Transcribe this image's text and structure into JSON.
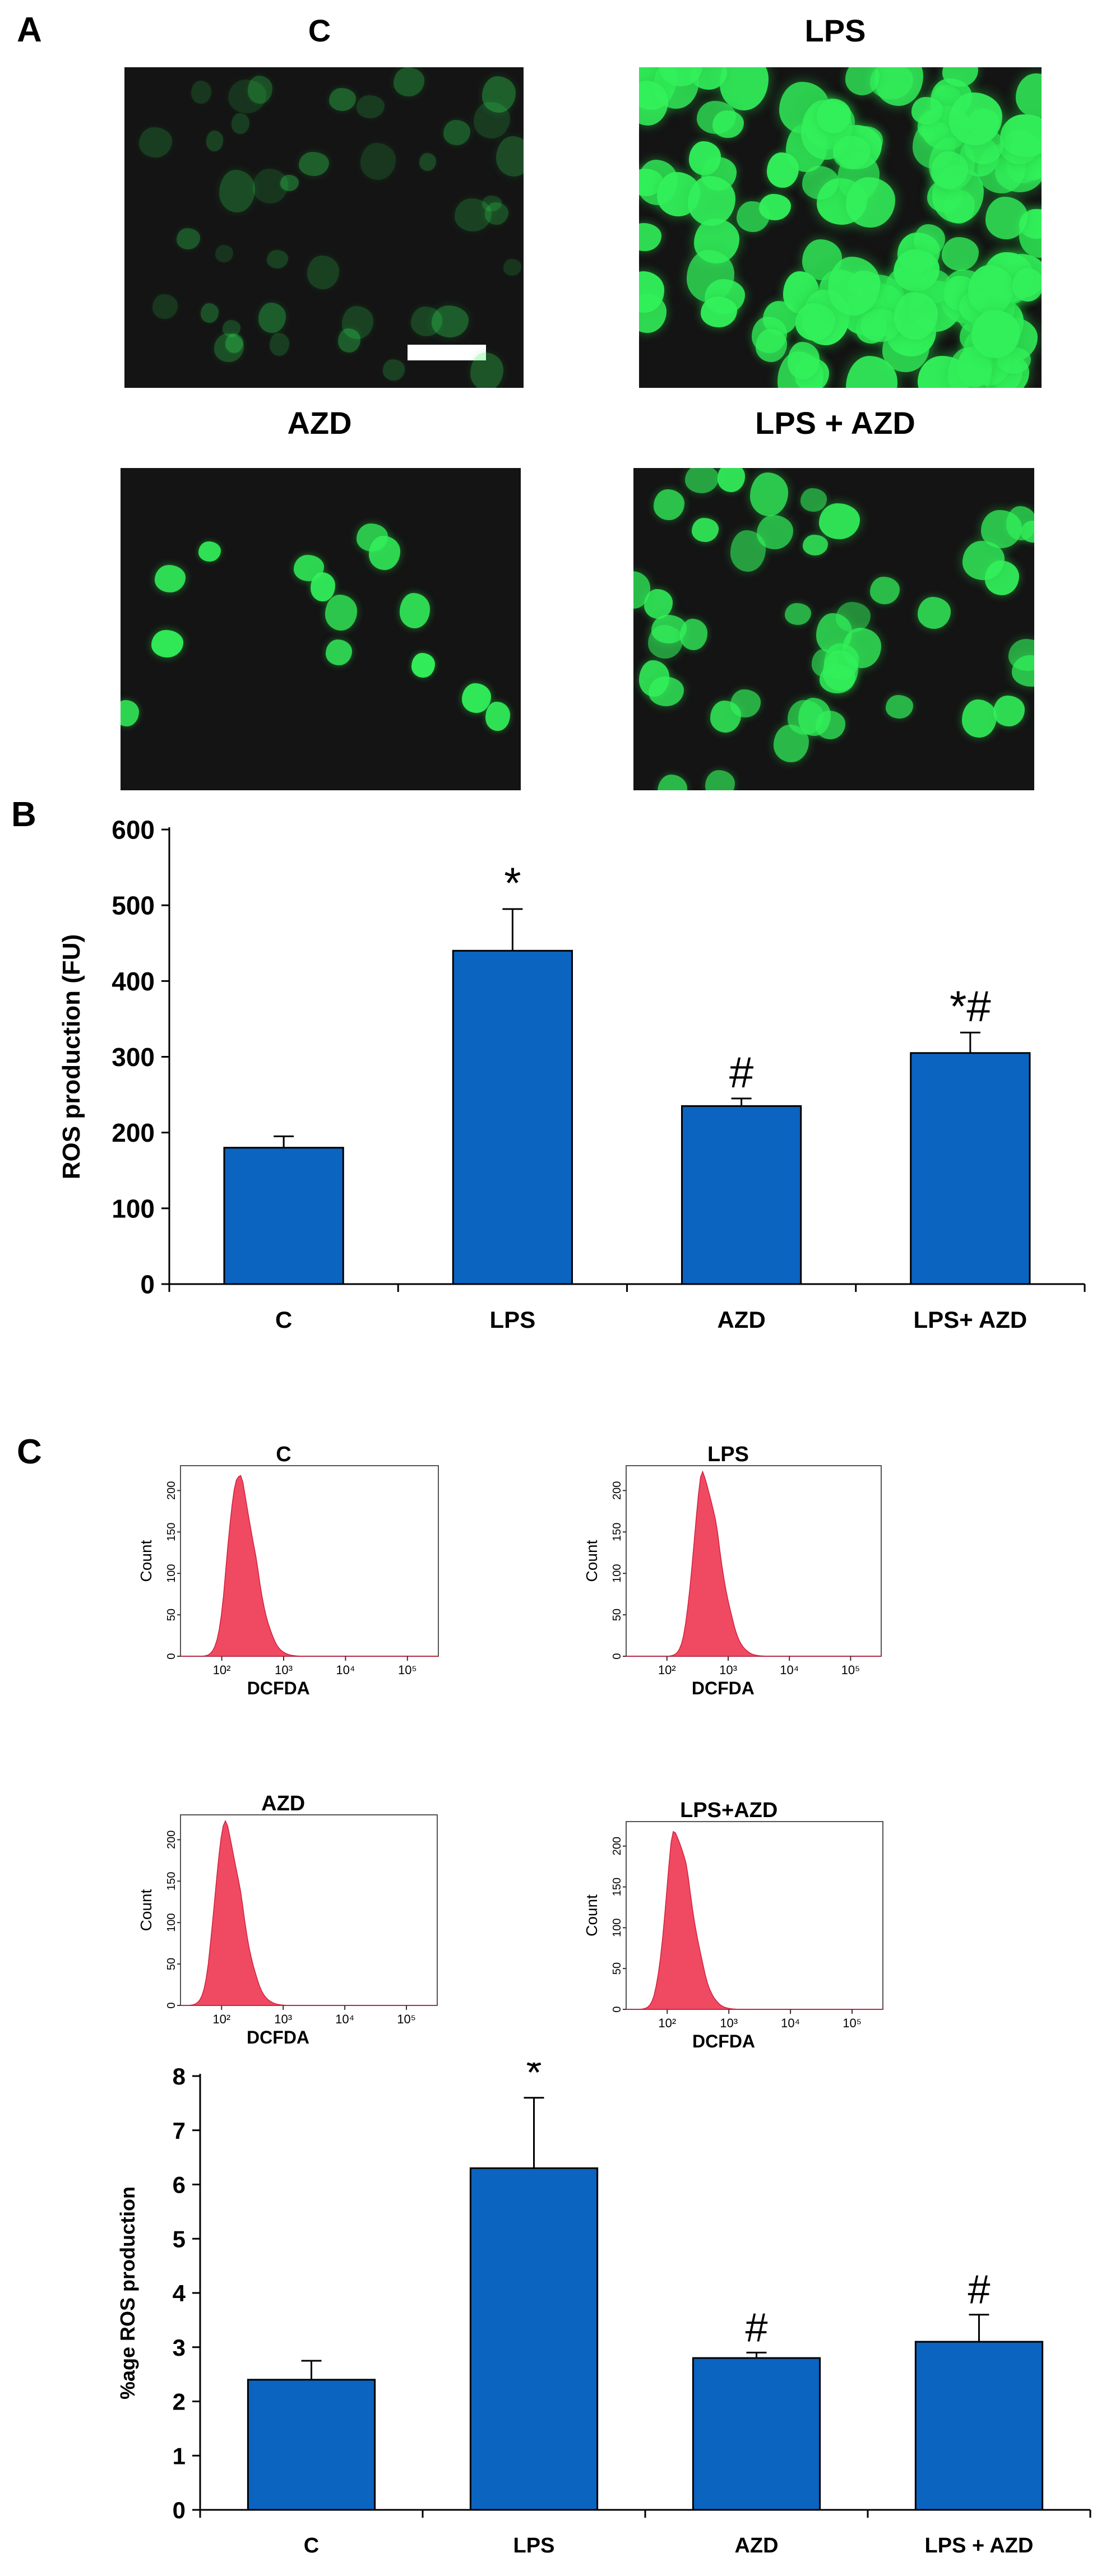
{
  "panel_a": {
    "letter": "A",
    "images": [
      {
        "title": "C",
        "brightness": "dim"
      },
      {
        "title": "LPS",
        "brightness": "bright"
      },
      {
        "title": "AZD",
        "brightness": "medium"
      },
      {
        "title": "LPS + AZD",
        "brightness": "medium-high"
      }
    ]
  },
  "panel_b": {
    "letter": "B"
  },
  "panel_c": {
    "letter": "C",
    "histograms": [
      {
        "title": "C",
        "xlabel": "DCFDA",
        "ylabel": "Count"
      },
      {
        "title": "LPS",
        "xlabel": "DCFDA",
        "ylabel": "Count"
      },
      {
        "title": "AZD",
        "xlabel": "DCFDA",
        "ylabel": "Count"
      },
      {
        "title": "LPS+AZD",
        "xlabel": "DCFDA",
        "ylabel": "Count"
      }
    ],
    "histogram_yticks": [
      "0",
      "50",
      "100",
      "150",
      "200"
    ],
    "histogram_xticks": [
      "10²",
      "10³",
      "10⁴",
      "10⁵"
    ]
  },
  "colors": {
    "bar": "#0a64c0",
    "fluorescence": "#33ff66",
    "histogram": "#f04a62"
  },
  "chart_data": [
    {
      "type": "bar",
      "categories": [
        "C",
        "LPS",
        "AZD",
        "LPS+ AZD"
      ],
      "values": [
        180,
        440,
        235,
        305
      ],
      "errors": [
        15,
        55,
        10,
        27
      ],
      "annotations": [
        "",
        "*",
        "#",
        "*#"
      ],
      "ylabel": "ROS production (FU)",
      "ylim": [
        0,
        600
      ],
      "yticks": [
        0,
        100,
        200,
        300,
        400,
        500,
        600
      ]
    },
    {
      "type": "bar",
      "categories": [
        "C",
        "LPS",
        "AZD",
        "LPS +  AZD"
      ],
      "values": [
        2.4,
        6.3,
        2.8,
        3.1
      ],
      "errors": [
        0.35,
        1.3,
        0.1,
        0.5
      ],
      "annotations": [
        "",
        "*",
        "#",
        "#"
      ],
      "ylabel": "%age ROS production",
      "ylim": [
        0,
        8
      ],
      "yticks": [
        0,
        1,
        2,
        3,
        4,
        5,
        6,
        7,
        8
      ]
    }
  ]
}
